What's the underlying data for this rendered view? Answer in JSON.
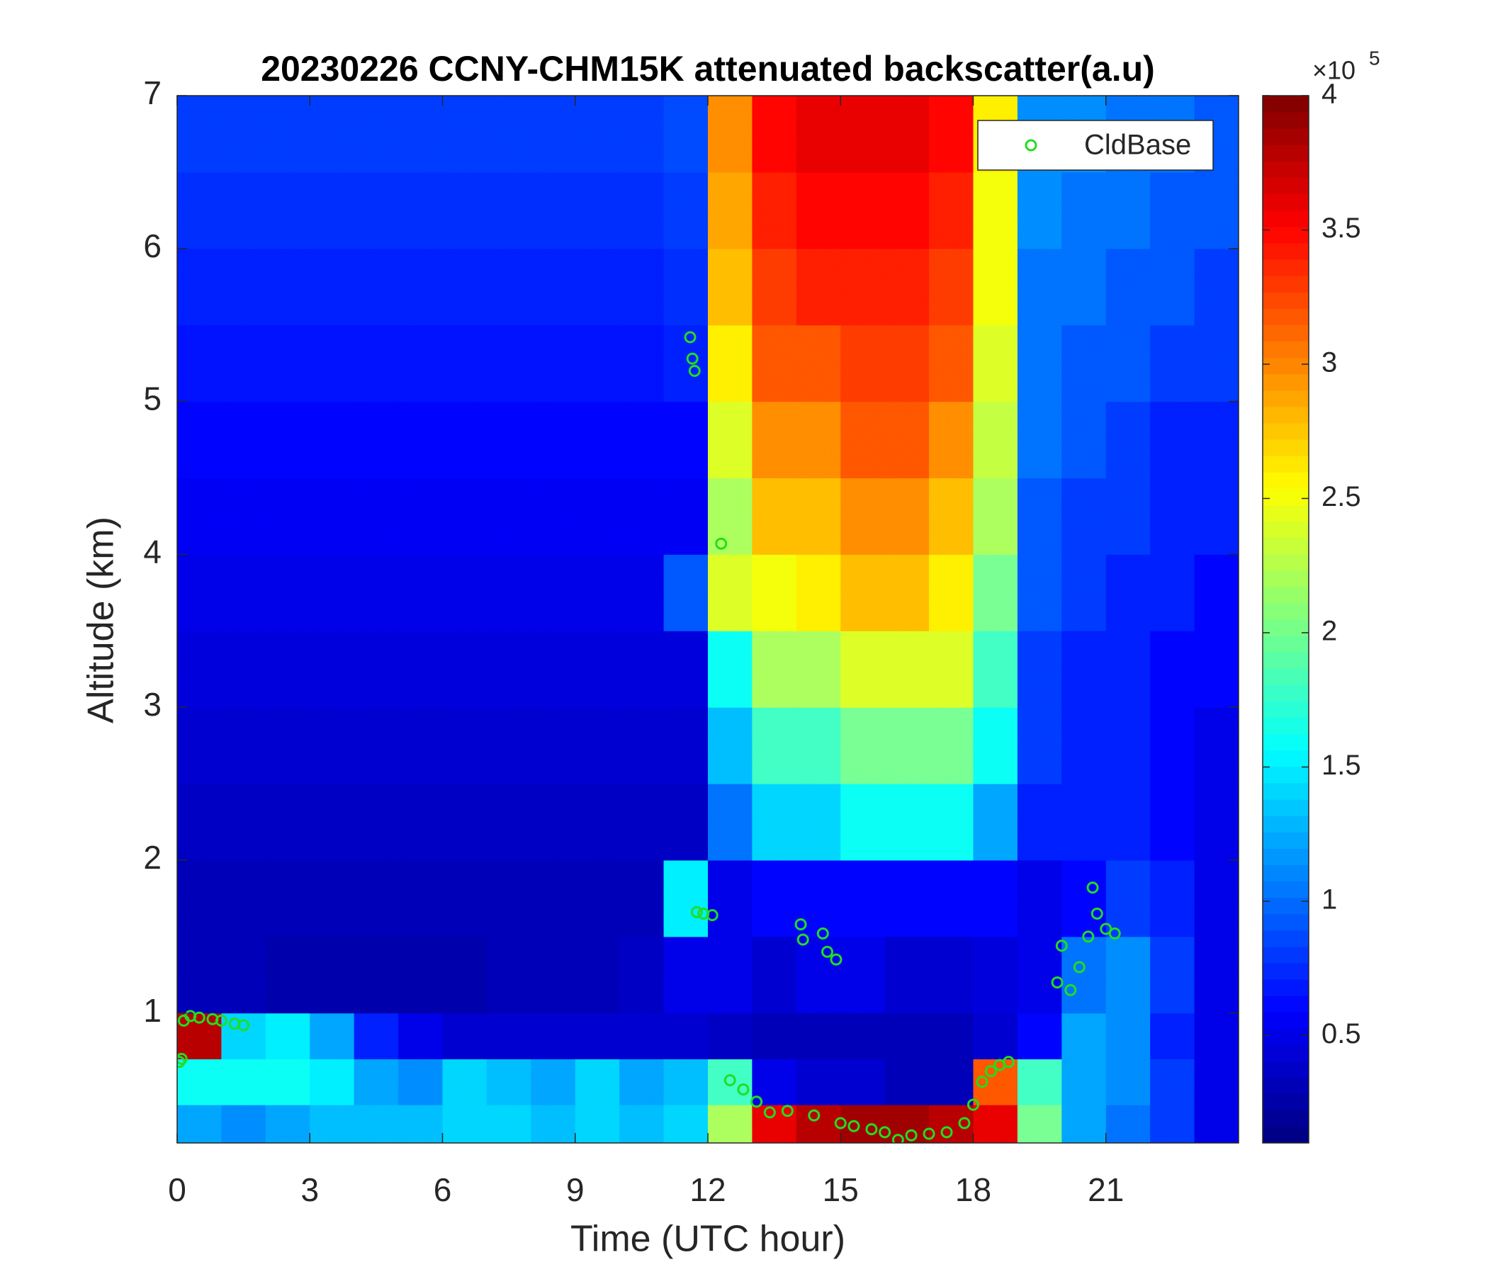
{
  "chart_data": {
    "type": "heatmap",
    "title": "20230226 CCNY-CHM15K attenuated backscatter(a.u)",
    "xlabel": "Time (UTC hour)",
    "ylabel": "Altitude (km)",
    "xlim": [
      0,
      24
    ],
    "ylim": [
      0.15,
      7
    ],
    "xticks": [
      0,
      3,
      6,
      9,
      12,
      15,
      18,
      21
    ],
    "yticks": [
      1,
      2,
      3,
      4,
      5,
      6,
      7
    ],
    "colormap": "jet",
    "clim": [
      0.1,
      4
    ],
    "cticks": [
      0.5,
      1,
      1.5,
      2,
      2.5,
      3,
      3.5,
      4
    ],
    "clabel_multiplier": "×10",
    "clabel_exponent": "5",
    "xbins": [
      0,
      1,
      2,
      3,
      4,
      5,
      6,
      7,
      8,
      9,
      10,
      11,
      12,
      13,
      14,
      15,
      16,
      17,
      18,
      19,
      20,
      21,
      22,
      23,
      24
    ],
    "ybins": [
      0.15,
      0.4,
      0.7,
      1.0,
      1.5,
      2,
      2.5,
      3,
      3.5,
      4,
      4.5,
      5,
      5.5,
      6,
      6.5,
      7
    ],
    "z": [
      [
        1.2,
        1.1,
        1.2,
        1.3,
        1.3,
        1.3,
        1.4,
        1.4,
        1.3,
        1.4,
        1.3,
        1.4,
        2.2,
        3.6,
        3.8,
        3.9,
        3.9,
        3.8,
        3.6,
        2.0,
        1.2,
        1.0,
        0.8,
        0.5
      ],
      [
        1.6,
        1.6,
        1.6,
        1.5,
        1.2,
        1.1,
        1.4,
        1.3,
        1.2,
        1.4,
        1.2,
        1.3,
        1.8,
        0.5,
        0.4,
        0.4,
        0.3,
        0.3,
        3.2,
        1.8,
        1.2,
        1.1,
        0.8,
        0.5
      ],
      [
        3.8,
        1.4,
        1.5,
        1.2,
        0.7,
        0.5,
        0.4,
        0.4,
        0.4,
        0.4,
        0.4,
        0.4,
        0.35,
        0.3,
        0.3,
        0.3,
        0.3,
        0.3,
        0.4,
        0.6,
        1.2,
        1.1,
        0.7,
        0.5
      ],
      [
        0.3,
        0.3,
        0.25,
        0.25,
        0.25,
        0.25,
        0.25,
        0.3,
        0.3,
        0.3,
        0.35,
        0.5,
        0.5,
        0.4,
        0.5,
        0.5,
        0.4,
        0.4,
        0.45,
        0.5,
        1.0,
        1.1,
        0.8,
        0.5
      ],
      [
        0.3,
        0.3,
        0.3,
        0.3,
        0.3,
        0.3,
        0.3,
        0.3,
        0.3,
        0.3,
        0.3,
        1.5,
        0.5,
        0.6,
        0.6,
        0.6,
        0.6,
        0.6,
        0.6,
        0.5,
        0.6,
        0.8,
        0.7,
        0.5
      ],
      [
        0.35,
        0.35,
        0.35,
        0.35,
        0.35,
        0.35,
        0.35,
        0.35,
        0.35,
        0.35,
        0.35,
        0.35,
        1.0,
        1.4,
        1.4,
        1.6,
        1.6,
        1.6,
        1.2,
        0.7,
        0.7,
        0.7,
        0.6,
        0.5
      ],
      [
        0.4,
        0.4,
        0.4,
        0.4,
        0.4,
        0.4,
        0.4,
        0.4,
        0.4,
        0.4,
        0.4,
        0.4,
        1.3,
        1.8,
        1.8,
        2.0,
        2.0,
        2.0,
        1.6,
        0.8,
        0.7,
        0.7,
        0.6,
        0.5
      ],
      [
        0.45,
        0.45,
        0.45,
        0.45,
        0.45,
        0.45,
        0.45,
        0.45,
        0.45,
        0.45,
        0.45,
        0.45,
        1.6,
        2.2,
        2.2,
        2.4,
        2.4,
        2.4,
        1.8,
        0.8,
        0.7,
        0.7,
        0.6,
        0.6
      ],
      [
        0.5,
        0.5,
        0.5,
        0.5,
        0.5,
        0.5,
        0.5,
        0.5,
        0.5,
        0.5,
        0.5,
        0.9,
        2.4,
        2.5,
        2.6,
        2.8,
        2.8,
        2.6,
        2.0,
        0.9,
        0.8,
        0.7,
        0.7,
        0.6
      ],
      [
        0.55,
        0.55,
        0.55,
        0.55,
        0.55,
        0.55,
        0.55,
        0.55,
        0.55,
        0.55,
        0.55,
        0.55,
        2.2,
        2.8,
        2.8,
        3.0,
        3.0,
        2.8,
        2.2,
        0.9,
        0.8,
        0.8,
        0.7,
        0.7
      ],
      [
        0.6,
        0.6,
        0.6,
        0.6,
        0.6,
        0.6,
        0.6,
        0.6,
        0.6,
        0.6,
        0.6,
        0.6,
        2.4,
        3.0,
        3.0,
        3.2,
        3.2,
        3.0,
        2.3,
        1.0,
        0.9,
        0.8,
        0.7,
        0.7
      ],
      [
        0.65,
        0.65,
        0.65,
        0.65,
        0.65,
        0.65,
        0.65,
        0.65,
        0.65,
        0.65,
        0.65,
        0.7,
        2.6,
        3.2,
        3.2,
        3.3,
        3.3,
        3.2,
        2.4,
        1.0,
        0.9,
        0.9,
        0.8,
        0.8
      ],
      [
        0.7,
        0.7,
        0.7,
        0.7,
        0.7,
        0.7,
        0.7,
        0.7,
        0.7,
        0.7,
        0.7,
        0.75,
        2.8,
        3.3,
        3.4,
        3.4,
        3.4,
        3.3,
        2.5,
        1.0,
        1.0,
        0.9,
        0.9,
        0.8
      ],
      [
        0.75,
        0.75,
        0.75,
        0.75,
        0.75,
        0.75,
        0.75,
        0.75,
        0.75,
        0.75,
        0.75,
        0.8,
        2.9,
        3.4,
        3.5,
        3.5,
        3.5,
        3.4,
        2.5,
        1.1,
        1.0,
        1.0,
        0.9,
        0.9
      ],
      [
        0.8,
        0.8,
        0.8,
        0.8,
        0.8,
        0.8,
        0.8,
        0.8,
        0.8,
        0.8,
        0.8,
        0.85,
        3.0,
        3.5,
        3.6,
        3.6,
        3.6,
        3.5,
        2.6,
        1.1,
        1.1,
        1.0,
        1.0,
        0.9
      ]
    ],
    "series": [
      {
        "name": "CldBase",
        "color": "#22dd22",
        "type": "scatter",
        "x": [
          0.05,
          0.1,
          0.15,
          0.3,
          0.5,
          0.8,
          1.0,
          1.3,
          1.5,
          11.6,
          11.65,
          11.7,
          11.75,
          11.9,
          12.1,
          12.3,
          12.5,
          12.8,
          13.1,
          13.4,
          13.8,
          14.1,
          14.15,
          14.4,
          14.6,
          14.7,
          14.9,
          15.0,
          15.3,
          15.7,
          16.0,
          16.3,
          16.6,
          17.0,
          17.4,
          17.8,
          18.0,
          18.2,
          18.4,
          18.6,
          18.8,
          19.9,
          20.0,
          20.2,
          20.4,
          20.6,
          20.7,
          20.8,
          21.0,
          21.2
        ],
        "values": [
          0.68,
          0.7,
          0.95,
          0.98,
          0.97,
          0.96,
          0.95,
          0.93,
          0.92,
          5.42,
          5.28,
          5.2,
          1.66,
          1.65,
          1.64,
          4.07,
          0.56,
          0.5,
          0.42,
          0.35,
          0.36,
          1.58,
          1.48,
          0.33,
          1.52,
          1.4,
          1.35,
          0.28,
          0.26,
          0.24,
          0.22,
          0.17,
          0.2,
          0.21,
          0.22,
          0.28,
          0.4,
          0.55,
          0.62,
          0.66,
          0.68,
          1.2,
          1.44,
          1.15,
          1.3,
          1.5,
          1.82,
          1.65,
          1.55,
          1.52
        ]
      }
    ],
    "legend": "upper right"
  }
}
